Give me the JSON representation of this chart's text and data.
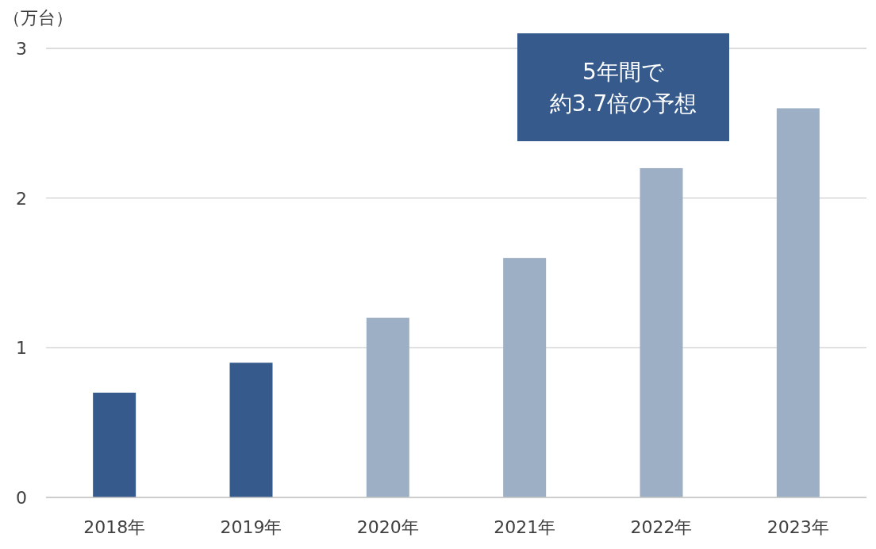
{
  "chart_data": {
    "type": "bar",
    "ylabel": "（万台）",
    "categories": [
      "2018年",
      "2019年",
      "2020年",
      "2021年",
      "2022年",
      "2023年"
    ],
    "values": [
      0.7,
      0.9,
      1.2,
      1.6,
      2.2,
      2.6
    ],
    "colors": [
      "#375a8c",
      "#375a8c",
      "#9dafc4",
      "#9dafc4",
      "#9dafc4",
      "#9dafc4"
    ],
    "ylim": [
      0,
      3
    ],
    "yticks": [
      0,
      1,
      2,
      3
    ],
    "grid": "y",
    "annotations": [
      "5年間で",
      "約3.7倍の予想"
    ]
  }
}
